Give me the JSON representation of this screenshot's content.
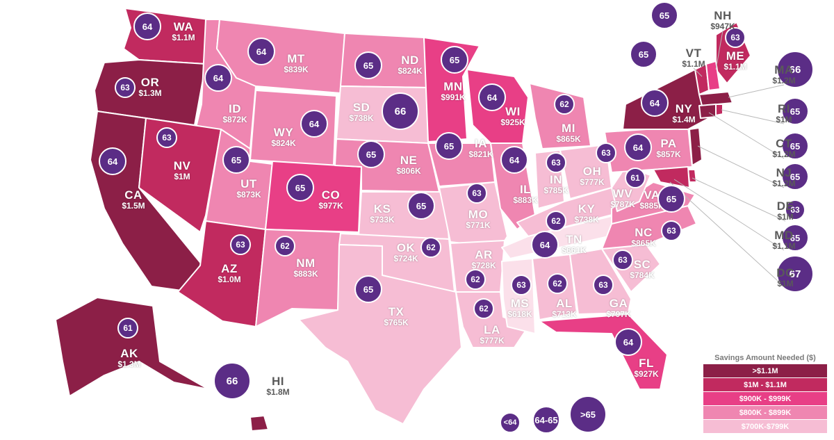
{
  "legend": {
    "title": "Savings Amount Needed ($)",
    "rows": [
      {
        "label": ">$1.1M",
        "color": "#8c1f47"
      },
      {
        "label": "$1M - $1.1M",
        "color": "#c12a5f"
      },
      {
        "label": "$900K - $999K",
        "color": "#e83f86"
      },
      {
        "label": "$800K - $899K",
        "color": "#ef86b1"
      },
      {
        "label": "$700K-$799K",
        "color": "#f6bdd4"
      }
    ]
  },
  "bubble_legend": [
    "<64",
    "64-65",
    ">65"
  ],
  "states": {
    "WA": {
      "abbr": "WA",
      "amount": "$1.1M",
      "age": "64",
      "color": "#c12a5f"
    },
    "OR": {
      "abbr": "OR",
      "amount": "$1.3M",
      "age": "63",
      "color": "#8c1f47"
    },
    "CA": {
      "abbr": "CA",
      "amount": "$1.5M",
      "age": "64",
      "color": "#8c1f47"
    },
    "ID": {
      "abbr": "ID",
      "amount": "$872K",
      "age": "64",
      "color": "#ef86b1"
    },
    "NV": {
      "abbr": "NV",
      "amount": "$1M",
      "age": "63",
      "color": "#c12a5f"
    },
    "MT": {
      "abbr": "MT",
      "amount": "$839K",
      "age": "64",
      "color": "#ef86b1"
    },
    "WY": {
      "abbr": "WY",
      "amount": "$824K",
      "age": "64",
      "color": "#ef86b1"
    },
    "UT": {
      "abbr": "UT",
      "amount": "$873K",
      "age": "65",
      "color": "#ef86b1"
    },
    "AZ": {
      "abbr": "AZ",
      "amount": "$1.0M",
      "age": "63",
      "color": "#c12a5f"
    },
    "CO": {
      "abbr": "CO",
      "amount": "$977K",
      "age": "65",
      "color": "#e83f86"
    },
    "NM": {
      "abbr": "NM",
      "amount": "$883K",
      "age": "62",
      "color": "#ef86b1"
    },
    "ND": {
      "abbr": "ND",
      "amount": "$824K",
      "age": "65",
      "color": "#ef86b1"
    },
    "SD": {
      "abbr": "SD",
      "amount": "$738K",
      "age": "66",
      "color": "#f6bdd4"
    },
    "NE": {
      "abbr": "NE",
      "amount": "$806K",
      "age": "65",
      "color": "#ef86b1"
    },
    "KS": {
      "abbr": "KS",
      "amount": "$733K",
      "age": "65",
      "color": "#f6bdd4"
    },
    "OK": {
      "abbr": "OK",
      "amount": "$724K",
      "age": "62",
      "color": "#f6bdd4"
    },
    "TX": {
      "abbr": "TX",
      "amount": "$765K",
      "age": "65",
      "color": "#f6bdd4"
    },
    "MN": {
      "abbr": "MN",
      "amount": "$991K",
      "age": "65",
      "color": "#e83f86"
    },
    "IA": {
      "abbr": "IA",
      "amount": "$821K",
      "age": "65",
      "color": "#ef86b1"
    },
    "MO": {
      "abbr": "MO",
      "amount": "$771K",
      "age": "63",
      "color": "#f6bdd4"
    },
    "AR": {
      "abbr": "AR",
      "amount": "$728K",
      "age": "62",
      "color": "#f6bdd4"
    },
    "LA": {
      "abbr": "LA",
      "amount": "$777K",
      "age": "62",
      "color": "#f6bdd4"
    },
    "WI": {
      "abbr": "WI",
      "amount": "$925K",
      "age": "64",
      "color": "#e83f86"
    },
    "IL": {
      "abbr": "IL",
      "amount": "$883K",
      "age": "64",
      "color": "#ef86b1"
    },
    "MI": {
      "abbr": "MI",
      "amount": "$865K",
      "age": "62",
      "color": "#ef86b1"
    },
    "IN": {
      "abbr": "IN",
      "amount": "$785K",
      "age": "63",
      "color": "#f6bdd4"
    },
    "OH": {
      "abbr": "OH",
      "amount": "$777K",
      "age": "63",
      "color": "#f6bdd4"
    },
    "KY": {
      "abbr": "KY",
      "amount": "$738K",
      "age": "62",
      "color": "#f6bdd4"
    },
    "TN": {
      "abbr": "TN",
      "amount": "$661K",
      "age": "64",
      "color": "#fbe0ea"
    },
    "MS": {
      "abbr": "MS",
      "amount": "$618K",
      "age": "63",
      "color": "#fbe0ea"
    },
    "AL": {
      "abbr": "AL",
      "amount": "$713K",
      "age": "62",
      "color": "#f6bdd4"
    },
    "GA": {
      "abbr": "GA",
      "amount": "$797K",
      "age": "63",
      "color": "#f6bdd4"
    },
    "FL": {
      "abbr": "FL",
      "amount": "$927K",
      "age": "64",
      "color": "#e83f86"
    },
    "SC": {
      "abbr": "SC",
      "amount": "$784K",
      "age": "63",
      "color": "#f6bdd4"
    },
    "NC": {
      "abbr": "NC",
      "amount": "$865K",
      "age": "63",
      "color": "#ef86b1"
    },
    "VA": {
      "abbr": "VA",
      "amount": "$885K",
      "age": "65",
      "color": "#ef86b1"
    },
    "WV": {
      "abbr": "WV",
      "amount": "$787K",
      "age": "61",
      "color": "#f6bdd4"
    },
    "PA": {
      "abbr": "PA",
      "amount": "$857K",
      "age": "64",
      "color": "#ef86b1"
    },
    "NY": {
      "abbr": "NY",
      "amount": "$1.4M",
      "age": "64",
      "color": "#8c1f47"
    },
    "ME": {
      "abbr": "ME",
      "amount": "$1.1M",
      "age": "63",
      "color": "#c12a5f"
    },
    "AK": {
      "abbr": "AK",
      "amount": "$1.3M",
      "age": "61",
      "color": "#8c1f47"
    },
    "HI": {
      "abbr": "HI",
      "amount": "$1.8M",
      "age": "66",
      "color": "#8c1f47"
    }
  },
  "callouts": {
    "NH": {
      "abbr": "NH",
      "amount": "$947K",
      "age": "65"
    },
    "VT": {
      "abbr": "VT",
      "amount": "$1.1M",
      "age": "65"
    },
    "MA": {
      "abbr": "MA",
      "amount": "$1.2M",
      "age": "66"
    },
    "RI": {
      "abbr": "RI",
      "amount": "$1M",
      "age": "65"
    },
    "CT": {
      "abbr": "CT",
      "amount": "$1.2M",
      "age": "65"
    },
    "NJ": {
      "abbr": "NJ",
      "amount": "$1.2M",
      "age": "65"
    },
    "DE": {
      "abbr": "DE",
      "amount": "$1M",
      "age": "63"
    },
    "MD": {
      "abbr": "MD",
      "amount": "$1.1M",
      "age": "65"
    },
    "DC": {
      "abbr": "DC",
      "amount": "$1M",
      "age": "67"
    }
  }
}
